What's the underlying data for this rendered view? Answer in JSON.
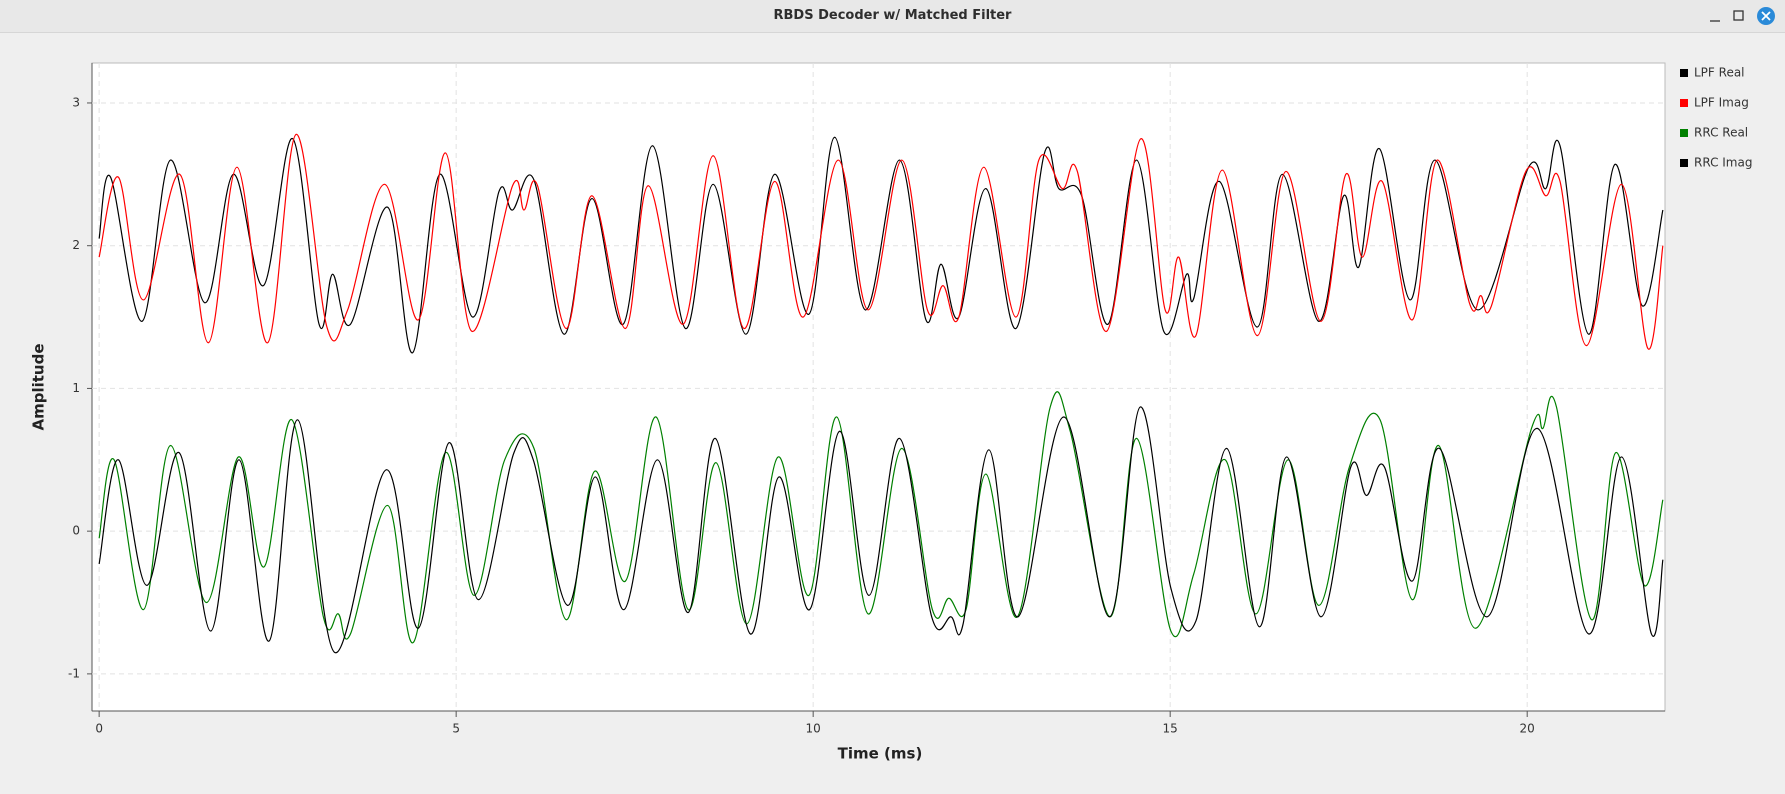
{
  "window": {
    "title": "RBDS Decoder w/ Matched Filter"
  },
  "chart_data": {
    "type": "line",
    "xlabel": "Time (ms)",
    "ylabel": "Amplitude",
    "xlim": [
      -0.1,
      21.93
    ],
    "ylim": [
      -1.26,
      3.28
    ],
    "xticks": [
      0,
      5,
      10,
      15,
      20
    ],
    "yticks": [
      -1,
      0,
      1,
      2,
      3
    ],
    "grid": true,
    "legend": "right",
    "series": [
      {
        "name": "LPF Real",
        "color": "#000000",
        "x": [
          0,
          0.16,
          0.6,
          1.0,
          1.48,
          1.88,
          2.3,
          2.71,
          3.08,
          3.27,
          3.52,
          4.04,
          4.39,
          4.77,
          5.23,
          5.6,
          5.79,
          6.09,
          6.51,
          6.9,
          7.34,
          7.75,
          8.21,
          8.6,
          9.06,
          9.46,
          9.94,
          10.3,
          10.73,
          11.21,
          11.58,
          11.79,
          12.04,
          12.42,
          12.84,
          13.24,
          13.44,
          13.76,
          14.13,
          14.53,
          14.91,
          15.23,
          15.33,
          15.69,
          16.22,
          16.57,
          17.08,
          17.43,
          17.64,
          17.93,
          18.36,
          18.71,
          19.31,
          20.02,
          20.26,
          20.46,
          20.86,
          21.23,
          21.61,
          21.9
        ],
        "values": [
          2.05,
          2.48,
          1.47,
          2.6,
          1.6,
          2.5,
          1.72,
          2.75,
          1.45,
          1.8,
          1.45,
          2.27,
          1.25,
          2.5,
          1.5,
          2.38,
          2.25,
          2.46,
          1.38,
          2.33,
          1.45,
          2.7,
          1.42,
          2.43,
          1.38,
          2.5,
          1.52,
          2.76,
          1.55,
          2.6,
          1.48,
          1.87,
          1.5,
          2.4,
          1.42,
          2.65,
          2.4,
          2.35,
          1.45,
          2.6,
          1.4,
          1.8,
          1.63,
          2.45,
          1.43,
          2.5,
          1.47,
          2.35,
          1.85,
          2.68,
          1.62,
          2.6,
          1.55,
          2.55,
          2.4,
          2.7,
          1.38,
          2.57,
          1.58,
          2.25
        ]
      },
      {
        "name": "LPF Imag",
        "color": "#ff0000",
        "x": [
          0,
          0.27,
          0.62,
          1.13,
          1.53,
          1.93,
          2.36,
          2.76,
          3.19,
          3.48,
          4.0,
          4.47,
          4.85,
          5.22,
          5.79,
          5.95,
          6.14,
          6.54,
          6.9,
          7.37,
          7.69,
          8.18,
          8.6,
          9.03,
          9.46,
          9.86,
          10.35,
          10.77,
          11.24,
          11.6,
          11.82,
          12.04,
          12.39,
          12.84,
          13.16,
          13.49,
          13.7,
          14.11,
          14.59,
          14.93,
          15.12,
          15.36,
          15.73,
          16.22,
          16.62,
          17.11,
          17.46,
          17.69,
          17.97,
          18.39,
          18.74,
          19.19,
          19.35,
          19.5,
          19.98,
          20.26,
          20.46,
          20.83,
          21.32,
          21.69,
          21.9
        ],
        "values": [
          1.92,
          2.48,
          1.62,
          2.5,
          1.32,
          2.55,
          1.32,
          2.78,
          1.43,
          1.55,
          2.43,
          1.48,
          2.65,
          1.4,
          2.42,
          2.25,
          2.42,
          1.42,
          2.35,
          1.42,
          2.42,
          1.45,
          2.63,
          1.42,
          2.45,
          1.5,
          2.6,
          1.55,
          2.6,
          1.55,
          1.72,
          1.5,
          2.55,
          1.5,
          2.6,
          2.4,
          2.52,
          1.4,
          2.75,
          1.55,
          1.92,
          1.37,
          2.53,
          1.37,
          2.52,
          1.47,
          2.5,
          1.92,
          2.45,
          1.48,
          2.6,
          1.6,
          1.65,
          1.58,
          2.52,
          2.35,
          2.45,
          1.3,
          2.43,
          1.28,
          2.0
        ]
      },
      {
        "name": "RRC Real",
        "color": "#008000",
        "x": [
          0,
          0.21,
          0.62,
          1.0,
          1.5,
          1.95,
          2.31,
          2.7,
          3.14,
          3.35,
          3.52,
          4.04,
          4.4,
          4.85,
          5.25,
          5.68,
          6.09,
          6.54,
          6.94,
          7.37,
          7.8,
          8.25,
          8.64,
          9.07,
          9.51,
          9.94,
          10.33,
          10.77,
          11.24,
          11.67,
          11.9,
          12.14,
          12.42,
          12.86,
          13.32,
          13.6,
          14.16,
          14.53,
          15.01,
          15.33,
          15.77,
          16.2,
          16.65,
          17.08,
          17.51,
          17.94,
          18.39,
          18.76,
          19.28,
          20.06,
          20.22,
          20.41,
          20.9,
          21.24,
          21.64,
          21.9
        ],
        "values": [
          -0.05,
          0.5,
          -0.55,
          0.6,
          -0.5,
          0.52,
          -0.25,
          0.78,
          -0.6,
          -0.58,
          -0.72,
          0.18,
          -0.78,
          0.55,
          -0.45,
          0.5,
          0.58,
          -0.62,
          0.42,
          -0.35,
          0.8,
          -0.55,
          0.48,
          -0.65,
          0.52,
          -0.45,
          0.8,
          -0.58,
          0.58,
          -0.55,
          -0.47,
          -0.55,
          0.4,
          -0.6,
          0.87,
          0.7,
          -0.6,
          0.65,
          -0.7,
          -0.3,
          0.5,
          -0.58,
          0.5,
          -0.52,
          0.45,
          0.78,
          -0.48,
          0.6,
          -0.68,
          0.72,
          0.72,
          0.87,
          -0.62,
          0.55,
          -0.38,
          0.22
        ]
      },
      {
        "name": "RRC Imag",
        "color": "#000000",
        "x": [
          0,
          0.27,
          0.67,
          1.12,
          1.56,
          1.96,
          2.38,
          2.78,
          3.3,
          4.02,
          4.47,
          4.9,
          5.31,
          5.81,
          6.08,
          6.56,
          6.95,
          7.35,
          7.82,
          8.25,
          8.63,
          9.12,
          9.52,
          9.95,
          10.37,
          10.78,
          11.21,
          11.66,
          11.93,
          12.1,
          12.46,
          12.87,
          13.51,
          14.15,
          14.58,
          15.01,
          15.36,
          15.79,
          16.25,
          16.63,
          17.11,
          17.53,
          17.75,
          18.0,
          18.39,
          18.77,
          19.44,
          20.14,
          20.86,
          21.32,
          21.74,
          21.9
        ],
        "values": [
          -0.23,
          0.5,
          -0.38,
          0.55,
          -0.7,
          0.5,
          -0.77,
          0.78,
          -0.85,
          0.43,
          -0.68,
          0.62,
          -0.48,
          0.55,
          0.5,
          -0.52,
          0.38,
          -0.55,
          0.5,
          -0.57,
          0.65,
          -0.72,
          0.38,
          -0.55,
          0.7,
          -0.45,
          0.65,
          -0.6,
          -0.6,
          -0.65,
          0.57,
          -0.6,
          0.8,
          -0.6,
          0.87,
          -0.4,
          -0.63,
          0.58,
          -0.67,
          0.52,
          -0.6,
          0.45,
          0.25,
          0.45,
          -0.35,
          0.58,
          -0.6,
          0.72,
          -0.72,
          0.52,
          -0.72,
          -0.2
        ]
      }
    ]
  }
}
